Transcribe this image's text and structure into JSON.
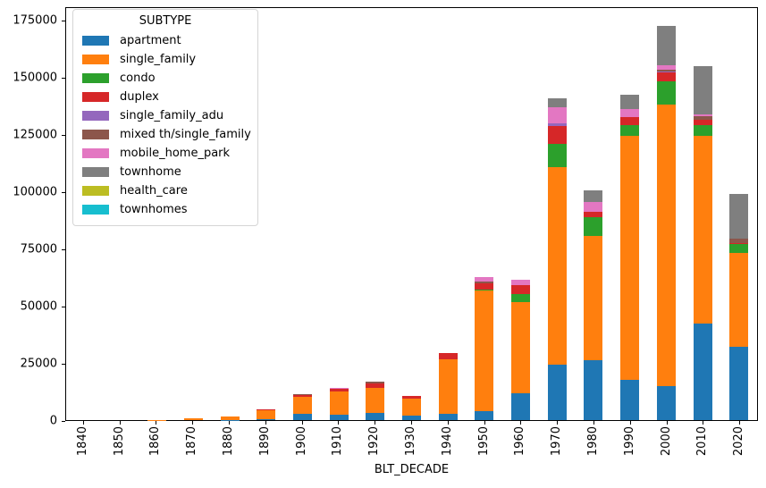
{
  "figure": {
    "background": "#ffffff"
  },
  "chart_data": {
    "type": "bar",
    "stacked": true,
    "title": "",
    "xlabel": "BLT_DECADE",
    "ylabel": "",
    "ylim": [
      0,
      180859
    ],
    "yticks": [
      0,
      25000,
      50000,
      75000,
      100000,
      125000,
      150000,
      175000
    ],
    "grid": false,
    "legend": {
      "title": "SUBTYPE",
      "position": "upper left"
    },
    "categories": [
      "1840",
      "1850",
      "1860",
      "1870",
      "1880",
      "1890",
      "1900",
      "1910",
      "1920",
      "1930",
      "1940",
      "1950",
      "1960",
      "1970",
      "1980",
      "1990",
      "2000",
      "2010",
      "2020"
    ],
    "series": [
      {
        "name": "apartment",
        "color": "#1f77b4",
        "values": [
          0,
          0,
          0,
          0,
          100,
          300,
          2700,
          2400,
          3100,
          1950,
          2900,
          3900,
          11700,
          24100,
          26100,
          17600,
          15000,
          42300,
          31900
        ]
      },
      {
        "name": "single_family",
        "color": "#ff7f0e",
        "values": [
          0,
          0,
          100,
          600,
          1500,
          3900,
          7400,
          10100,
          10900,
          7400,
          23700,
          52800,
          39900,
          86300,
          54400,
          106500,
          122800,
          81900,
          41100
        ]
      },
      {
        "name": "condo",
        "color": "#2ca02c",
        "values": [
          0,
          0,
          0,
          0,
          0,
          100,
          0,
          0,
          0,
          0,
          100,
          500,
          3500,
          10400,
          8200,
          4900,
          10200,
          4600,
          3800
        ]
      },
      {
        "name": "duplex",
        "color": "#d62728",
        "values": [
          0,
          0,
          0,
          50,
          0,
          300,
          900,
          1000,
          1950,
          1150,
          2700,
          2700,
          3900,
          7800,
          2200,
          3300,
          3900,
          2300,
          500
        ]
      },
      {
        "name": "single_family_adu",
        "color": "#9467bd",
        "values": [
          0,
          0,
          0,
          0,
          0,
          0,
          0,
          0,
          0,
          0,
          0,
          0,
          0,
          1050,
          0,
          0,
          300,
          0,
          0
        ]
      },
      {
        "name": "mixed th/single_family",
        "color": "#8c564b",
        "values": [
          0,
          0,
          0,
          0,
          0,
          0,
          200,
          200,
          800,
          0,
          0,
          700,
          0,
          0,
          0,
          0,
          1000,
          1600,
          2200
        ]
      },
      {
        "name": "mobile_home_park",
        "color": "#e377c2",
        "values": [
          0,
          0,
          0,
          0,
          0,
          0,
          0,
          300,
          0,
          0,
          0,
          1900,
          2300,
          7000,
          4500,
          3500,
          1800,
          1000,
          0
        ]
      },
      {
        "name": "townhome",
        "color": "#7f7f7f",
        "values": [
          0,
          0,
          0,
          0,
          0,
          0,
          0,
          0,
          0,
          0,
          0,
          0,
          0,
          3900,
          4900,
          6300,
          17300,
          21100,
          19500
        ]
      },
      {
        "name": "health_care",
        "color": "#bcbd22",
        "values": [
          0,
          0,
          0,
          0,
          0,
          0,
          0,
          0,
          0,
          0,
          0,
          0,
          0,
          0,
          0,
          0,
          0,
          0,
          0
        ]
      },
      {
        "name": "townhomes",
        "color": "#17becf",
        "values": [
          0,
          0,
          0,
          0,
          0,
          0,
          0,
          0,
          0,
          0,
          0,
          0,
          0,
          0,
          0,
          0,
          0,
          0,
          0
        ]
      }
    ]
  }
}
